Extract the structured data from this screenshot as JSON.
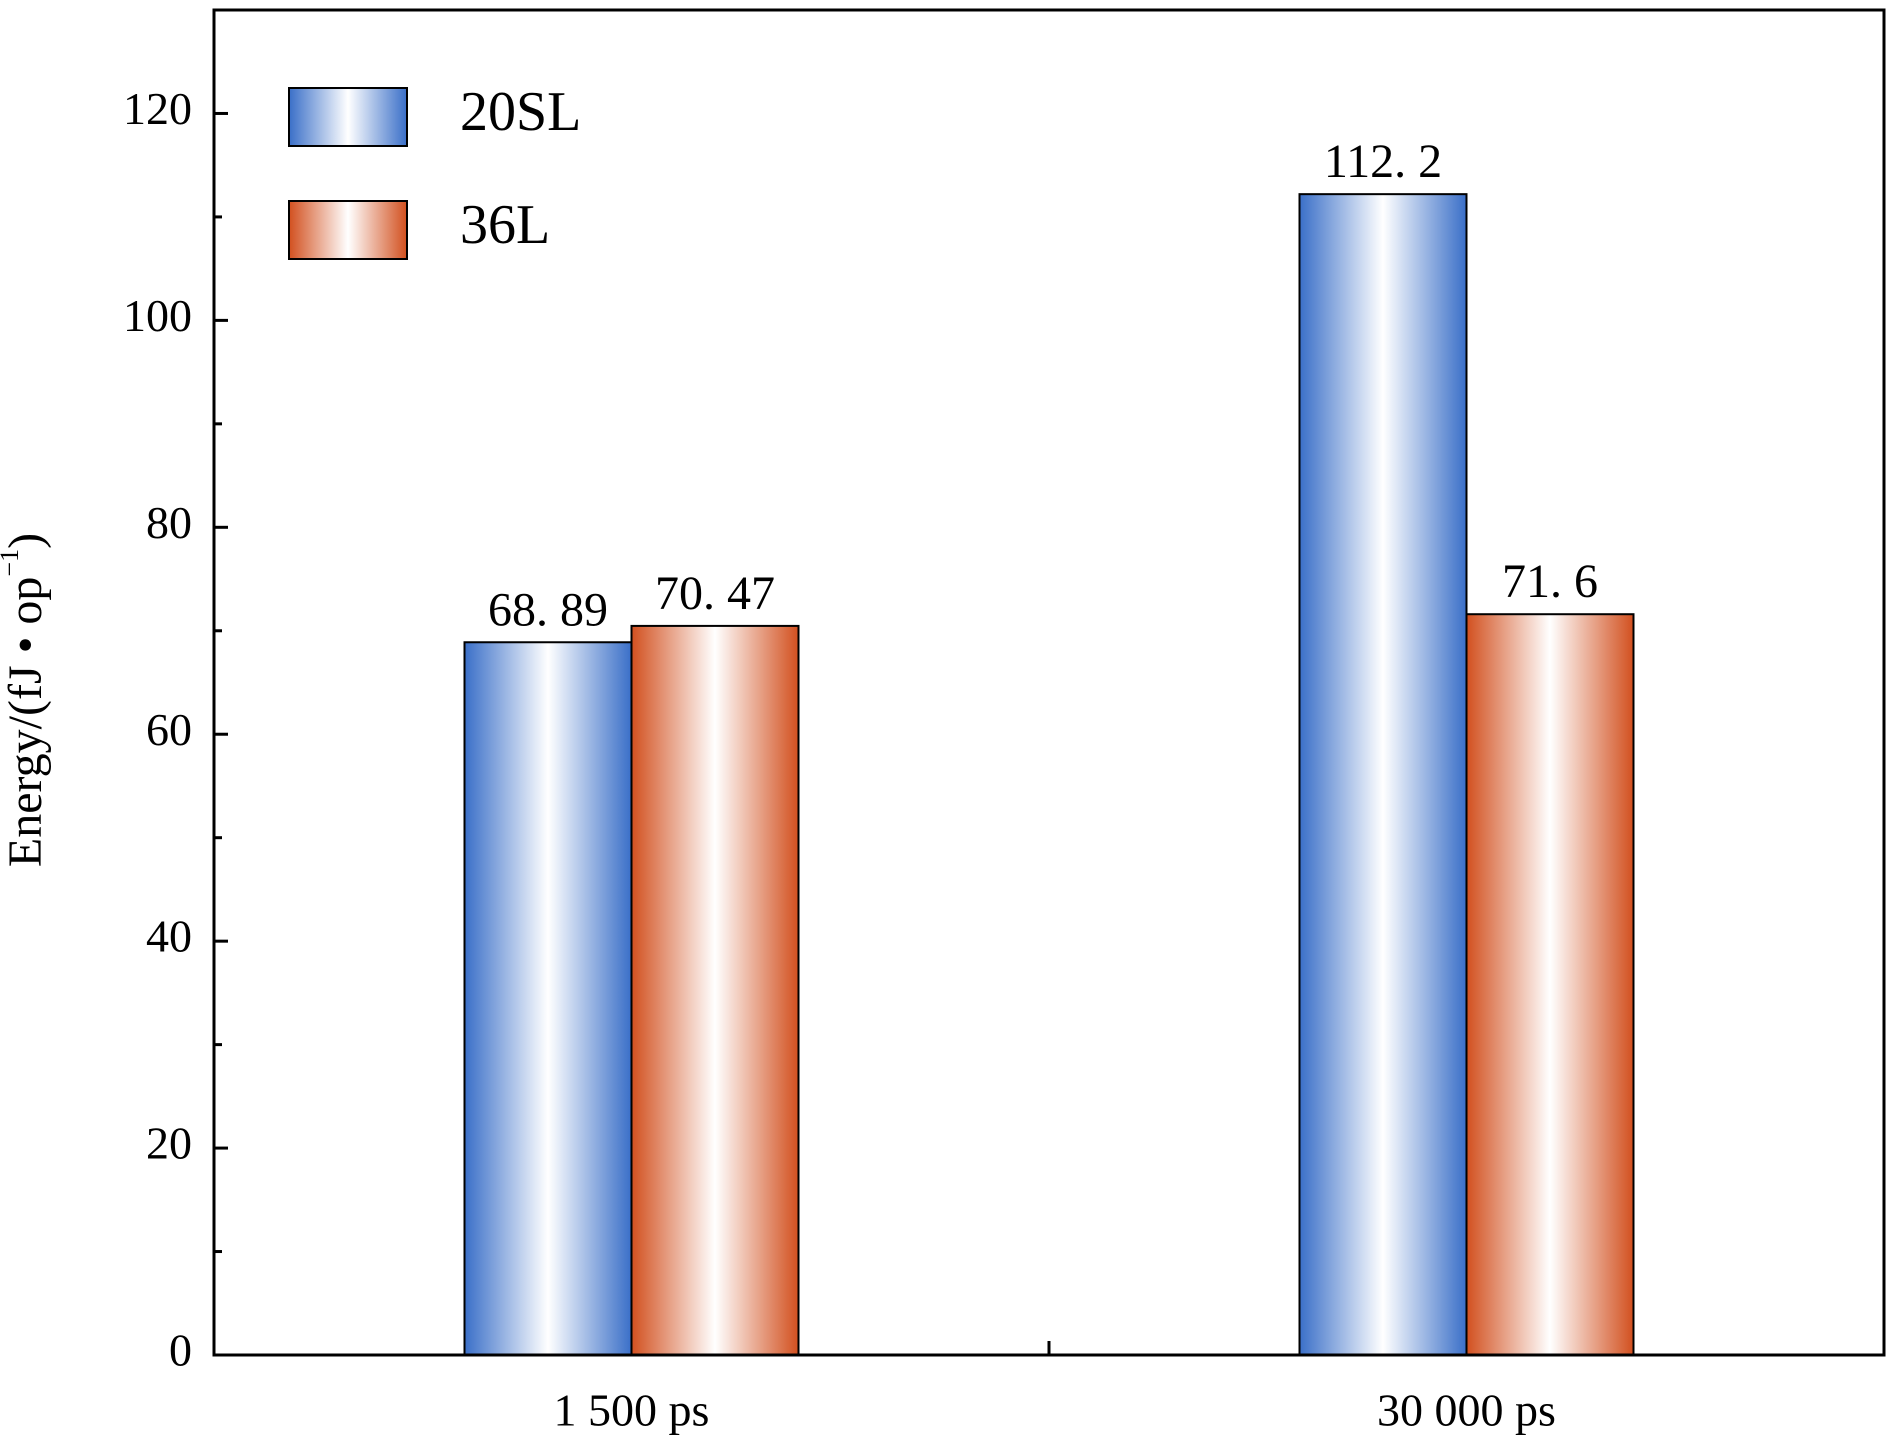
{
  "chart_data": {
    "type": "bar",
    "ylabel": "Energy/(fJ • op",
    "ylabel_sup": "−1",
    "ylabel_end": ")",
    "categories": [
      "1 500 ps",
      "30 000 ps"
    ],
    "series": [
      {
        "name": "20SL",
        "color": "#3a6fc8",
        "values": [
          68.89,
          112.2
        ],
        "value_labels": [
          "68. 89",
          "112. 2"
        ]
      },
      {
        "name": "36L",
        "color": "#d2501f",
        "values": [
          70.47,
          71.6
        ],
        "value_labels": [
          "70. 47",
          "71. 6"
        ]
      }
    ],
    "ylim": [
      0,
      130
    ],
    "yticks": [
      0,
      20,
      40,
      60,
      80,
      100,
      120
    ],
    "yminorticks": [
      10,
      30,
      50,
      70,
      90,
      110
    ],
    "legend": "upper-left",
    "grid": false
  }
}
